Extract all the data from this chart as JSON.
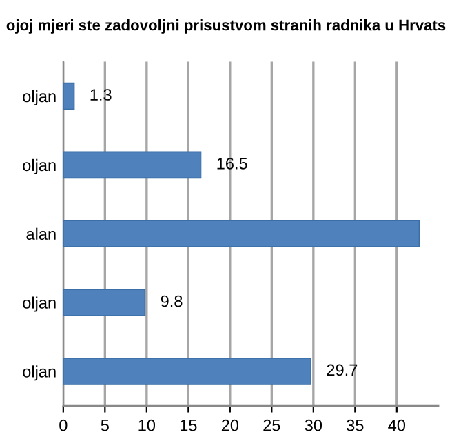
{
  "chart_data": {
    "type": "bar",
    "orientation": "horizontal",
    "title": "ojoj mjeri ste zadovoljni prisustvom stranih radnika u Hrvats",
    "categories": [
      "oljan",
      "oljan",
      "alan",
      "oljan",
      "oljan"
    ],
    "values": [
      1.3,
      16.5,
      42.7,
      9.8,
      29.7
    ],
    "value_labels": [
      "1.3",
      "16.5",
      null,
      "9.8",
      "29.7"
    ],
    "color": "#4f81bd",
    "xlim": [
      0,
      45
    ],
    "xticks": [
      0,
      5,
      10,
      15,
      20,
      25,
      30,
      35,
      40
    ],
    "grid": "x"
  }
}
